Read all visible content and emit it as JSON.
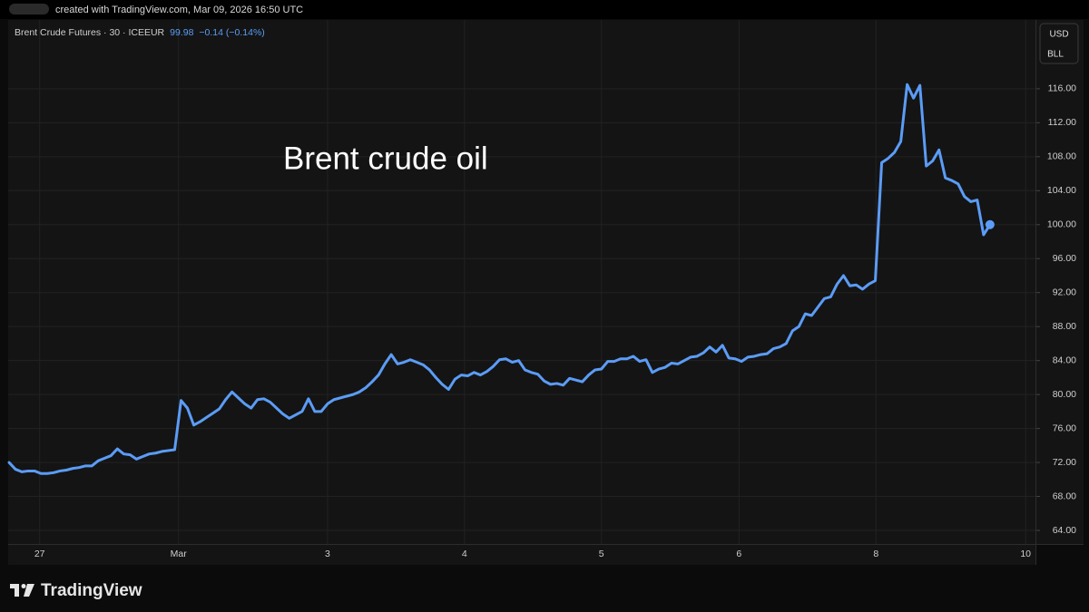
{
  "chart_data": {
    "type": "line",
    "header": "created with TradingView.com, Mar 09, 2026 16:50 UTC",
    "symbol": "Brent Crude Futures · 30 · ICEEUR",
    "last": 99.98,
    "change": "−0.14 (−0.14%)",
    "annotation": "Brent crude oil",
    "currency": "USD",
    "unit": "BLL",
    "brand": "TradingView",
    "color": "#5b9cf6",
    "grid": true,
    "values": [
      72.0,
      71.2,
      70.9,
      71.0,
      71.0,
      70.7,
      70.7,
      70.8,
      71.0,
      71.1,
      71.3,
      71.4,
      71.6,
      71.6,
      72.2,
      72.5,
      72.8,
      73.6,
      73.0,
      72.9,
      72.4,
      72.7,
      73.0,
      73.1,
      73.3,
      73.4,
      73.5,
      79.3,
      78.4,
      76.4,
      76.8,
      77.3,
      77.8,
      78.3,
      79.4,
      80.3,
      79.6,
      78.9,
      78.4,
      79.4,
      79.5,
      79.1,
      78.4,
      77.7,
      77.2,
      77.6,
      78.0,
      79.5,
      78.0,
      78.0,
      78.9,
      79.4,
      79.6,
      79.8,
      80.0,
      80.3,
      80.8,
      81.5,
      82.3,
      83.6,
      84.7,
      83.6,
      83.8,
      84.1,
      83.8,
      83.5,
      82.9,
      82.0,
      81.2,
      80.6,
      81.8,
      82.3,
      82.2,
      82.6,
      82.3,
      82.7,
      83.3,
      84.1,
      84.2,
      83.8,
      84.0,
      82.9,
      82.6,
      82.4,
      81.6,
      81.2,
      81.3,
      81.1,
      81.9,
      81.7,
      81.5,
      82.3,
      82.9,
      83.0,
      83.9,
      83.9,
      84.2,
      84.2,
      84.5,
      83.9,
      84.1,
      82.6,
      83.0,
      83.2,
      83.7,
      83.6,
      84.0,
      84.4,
      84.5,
      84.9,
      85.6,
      85.0,
      85.8,
      84.3,
      84.2,
      83.9,
      84.4,
      84.5,
      84.7,
      84.8,
      85.4,
      85.6,
      86.0,
      87.5,
      88.0,
      89.5,
      89.3,
      90.3,
      91.3,
      91.5,
      93.0,
      94.0,
      92.8,
      92.9,
      92.4,
      93.0,
      93.4,
      107.3,
      107.8,
      108.5,
      109.8,
      116.5,
      114.9,
      116.4,
      106.9,
      107.5,
      108.8,
      105.5,
      105.2,
      104.8,
      103.3,
      102.7,
      102.9,
      98.8,
      100.0
    ],
    "xlim": [
      0,
      161
    ],
    "xticks": [
      {
        "value": 4.8,
        "label": "27"
      },
      {
        "value": 26.6,
        "label": "Mar"
      },
      {
        "value": 50,
        "label": "3"
      },
      {
        "value": 71.5,
        "label": "4"
      },
      {
        "value": 93,
        "label": "5"
      },
      {
        "value": 114.6,
        "label": "6"
      },
      {
        "value": 136.1,
        "label": "8"
      },
      {
        "value": 159.6,
        "label": "10"
      }
    ],
    "ylim": [
      62.4,
      124.1
    ],
    "yticks": [
      {
        "value": 64,
        "label": "64.00"
      },
      {
        "value": 68,
        "label": "68.00"
      },
      {
        "value": 72,
        "label": "72.00"
      },
      {
        "value": 76,
        "label": "76.00"
      },
      {
        "value": 80,
        "label": "80.00"
      },
      {
        "value": 84,
        "label": "84.00"
      },
      {
        "value": 88,
        "label": "88.00"
      },
      {
        "value": 92,
        "label": "92.00"
      },
      {
        "value": 96,
        "label": "96.00"
      },
      {
        "value": 100,
        "label": "100.00"
      },
      {
        "value": 104,
        "label": "104.00"
      },
      {
        "value": 108,
        "label": "108.00"
      },
      {
        "value": 112,
        "label": "112.00"
      },
      {
        "value": 116,
        "label": "116.00"
      }
    ]
  }
}
